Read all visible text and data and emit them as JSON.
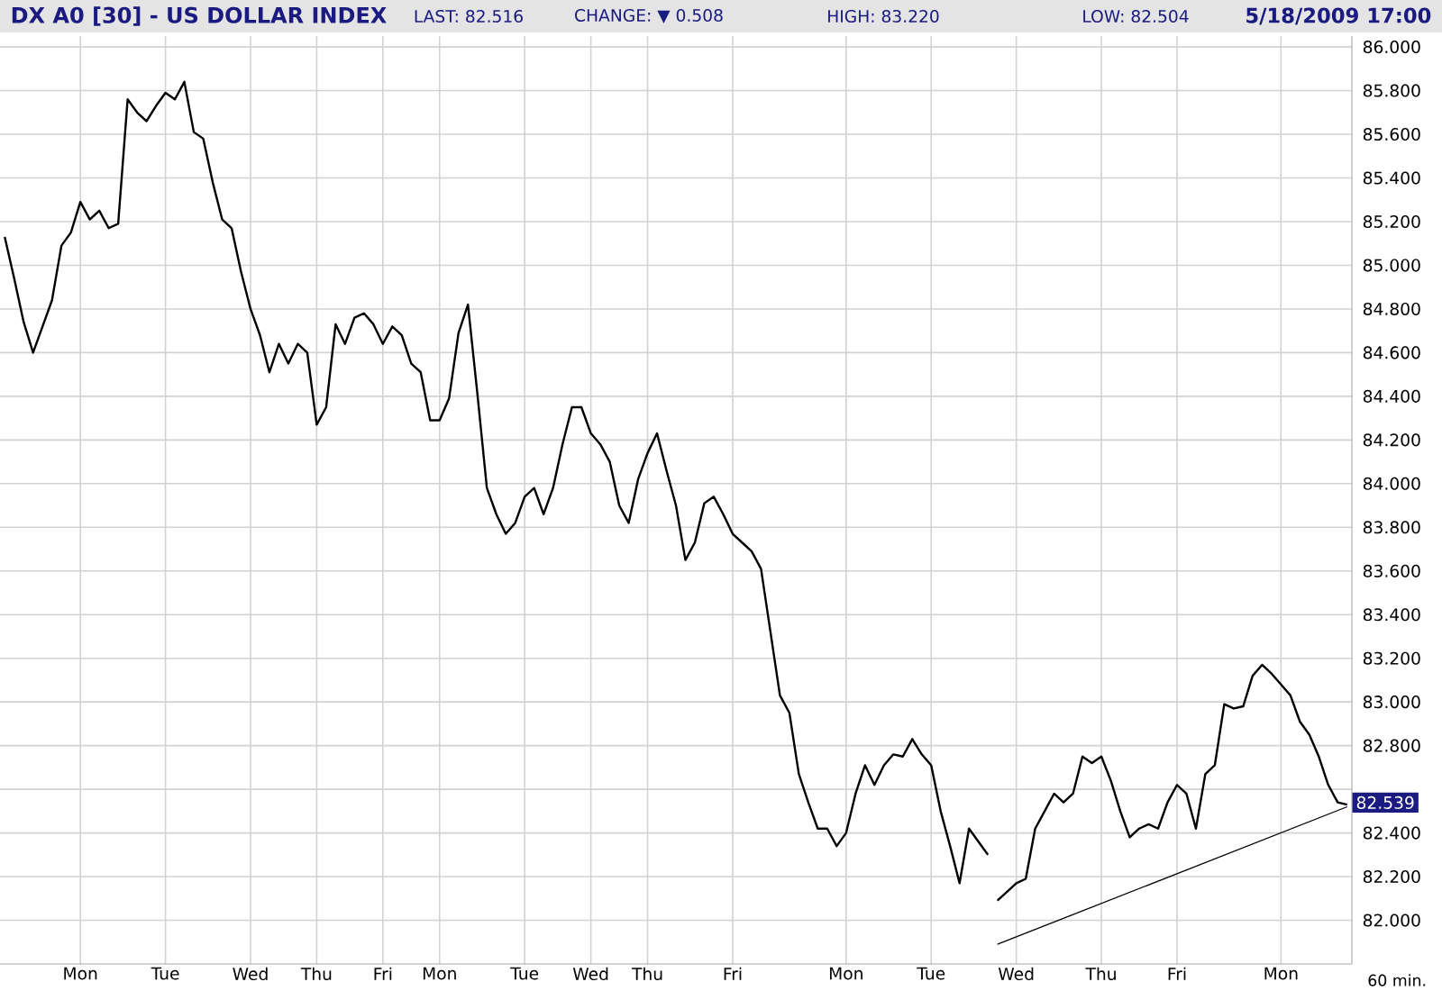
{
  "chart_data": {
    "type": "line",
    "title": "DX A0 [30] - US DOLLAR INDEX",
    "annotations": [
      "LAST: 82.516",
      "CHANGE: ▼ 0.508",
      "HIGH: 83.220",
      "LOW: 82.504",
      "5/18/2009 17:00",
      {
        "text": "82.539",
        "y": 82.539
      },
      "60 min."
    ],
    "categories": [
      null,
      null,
      null,
      null,
      null,
      null,
      null,
      null,
      "Mon",
      null,
      null,
      null,
      null,
      null,
      null,
      null,
      null,
      "Tue",
      null,
      null,
      null,
      null,
      null,
      null,
      null,
      null,
      "Wed",
      null,
      null,
      null,
      null,
      null,
      null,
      "Thu",
      null,
      null,
      null,
      null,
      null,
      null,
      "Fri",
      null,
      null,
      null,
      null,
      null,
      "Mon",
      null,
      null,
      null,
      null,
      null,
      null,
      null,
      null,
      "Tue",
      null,
      null,
      null,
      null,
      null,
      null,
      "Wed",
      null,
      null,
      null,
      null,
      null,
      "Thu",
      null,
      null,
      null,
      null,
      null,
      null,
      null,
      null,
      "Fri",
      null,
      null,
      null,
      null,
      null,
      null,
      null,
      null,
      null,
      null,
      null,
      "Mon",
      null,
      null,
      null,
      null,
      null,
      null,
      null,
      null,
      "Tue",
      null,
      null,
      null,
      null,
      null,
      null,
      null,
      null,
      "Wed",
      null,
      null,
      null,
      null,
      null,
      null,
      null,
      null,
      "Thu",
      null,
      null,
      null,
      null,
      null,
      null,
      null,
      "Fri",
      null,
      null,
      null,
      null,
      null,
      null,
      null,
      null,
      null,
      null,
      "Mon",
      null,
      null,
      null,
      null,
      null,
      null,
      null
    ],
    "ylim": [
      81.8,
      86.05
    ],
    "yticks": [
      {
        "value": 82.0,
        "label": "82.000"
      },
      {
        "value": 82.2,
        "label": "82.200"
      },
      {
        "value": 82.4,
        "label": "82.400"
      },
      {
        "value": 82.6,
        "label": null
      },
      {
        "value": 82.8,
        "label": "82.800"
      },
      {
        "value": 83.0,
        "label": "83.000"
      },
      {
        "value": 83.2,
        "label": "83.200"
      },
      {
        "value": 83.4,
        "label": "83.400"
      },
      {
        "value": 83.6,
        "label": "83.600"
      },
      {
        "value": 83.8,
        "label": "83.800"
      },
      {
        "value": 84.0,
        "label": "84.000"
      },
      {
        "value": 84.2,
        "label": "84.200"
      },
      {
        "value": 84.4,
        "label": "84.400"
      },
      {
        "value": 84.6,
        "label": "84.600"
      },
      {
        "value": 84.8,
        "label": "84.800"
      },
      {
        "value": 85.0,
        "label": "85.000"
      },
      {
        "value": 85.2,
        "label": "85.200"
      },
      {
        "value": 85.4,
        "label": "85.400"
      },
      {
        "value": 85.6,
        "label": "85.600"
      },
      {
        "value": 85.8,
        "label": "85.800"
      },
      {
        "value": 86.0,
        "label": "86.000"
      }
    ],
    "grid": true,
    "series": [
      {
        "color": "#000000",
        "values": [
          85.13,
          84.94,
          84.74,
          84.6,
          84.72,
          84.84,
          85.09,
          85.15,
          85.29,
          85.21,
          85.25,
          85.17,
          85.19,
          85.76,
          85.7,
          85.66,
          85.73,
          85.79,
          85.76,
          85.84,
          85.61,
          85.58,
          85.38,
          85.21,
          85.17,
          84.97,
          84.8,
          84.68,
          84.51,
          84.64,
          84.55,
          84.64,
          84.6,
          84.27,
          84.35,
          84.73,
          84.64,
          84.76,
          84.78,
          84.73,
          84.64,
          84.72,
          84.68,
          84.55,
          84.51,
          84.29,
          84.29,
          84.39,
          84.69,
          84.82,
          84.41,
          83.98,
          83.86,
          83.77,
          83.82,
          83.94,
          83.98,
          83.86,
          83.98,
          84.18,
          84.35,
          84.35,
          84.23,
          84.18,
          84.1,
          83.9,
          83.82,
          84.02,
          84.14,
          84.23,
          84.06,
          83.9,
          83.65,
          83.73,
          83.91,
          83.94,
          83.86,
          83.77,
          83.73,
          83.69,
          83.61,
          83.32,
          83.03,
          82.95,
          82.67,
          82.54,
          82.42,
          82.42,
          82.34,
          82.4,
          82.58,
          82.71,
          82.62,
          82.71,
          82.76,
          82.75,
          82.83,
          82.76,
          82.71,
          82.5,
          82.34,
          82.17,
          82.42,
          82.36,
          82.3,
          null,
          null,
          null,
          null,
          null,
          null,
          null,
          null,
          null,
          null,
          null,
          null,
          null,
          null,
          null,
          null,
          null,
          null,
          null,
          null,
          null,
          null,
          null,
          null,
          null,
          null,
          null,
          null,
          null,
          null,
          null,
          null,
          null,
          null,
          null,
          null,
          null,
          null
        ]
      },
      {
        "color": "#000000",
        "values": [
          null,
          null,
          null,
          null,
          null,
          null,
          null,
          null,
          null,
          null,
          null,
          null,
          null,
          null,
          null,
          null,
          null,
          null,
          null,
          null,
          null,
          null,
          null,
          null,
          null,
          null,
          null,
          null,
          null,
          null,
          null,
          null,
          null,
          null,
          null,
          null,
          null,
          null,
          null,
          null,
          null,
          null,
          null,
          null,
          null,
          null,
          null,
          null,
          null,
          null,
          null,
          null,
          null,
          null,
          null,
          null,
          null,
          null,
          null,
          null,
          null,
          null,
          null,
          null,
          null,
          null,
          null,
          null,
          null,
          null,
          null,
          null,
          null,
          null,
          null,
          null,
          null,
          null,
          null,
          null,
          null,
          null,
          null,
          null,
          null,
          null,
          null,
          null,
          null,
          null,
          null,
          null,
          null,
          null,
          null,
          null,
          null,
          null,
          null,
          null,
          null,
          null,
          null,
          null,
          null,
          82.09,
          82.13,
          82.17,
          82.19,
          82.42,
          82.5,
          82.58,
          82.54,
          82.58,
          82.75,
          82.72,
          82.75,
          82.64,
          82.5,
          82.38,
          82.42,
          82.44,
          82.42,
          82.54,
          82.62,
          82.58,
          82.42,
          82.67,
          82.71,
          82.99,
          82.97,
          82.98,
          83.12,
          83.17,
          83.13,
          83.08,
          83.03,
          82.91,
          82.85,
          82.75,
          82.62,
          82.54,
          82.53
        ]
      },
      {
        "type": "line",
        "color": "#000000",
        "values": [
          null,
          null,
          null,
          null,
          null,
          null,
          null,
          null,
          null,
          null,
          null,
          null,
          null,
          null,
          null,
          null,
          null,
          null,
          null,
          null,
          null,
          null,
          null,
          null,
          null,
          null,
          null,
          null,
          null,
          null,
          null,
          null,
          null,
          null,
          null,
          null,
          null,
          null,
          null,
          null,
          null,
          null,
          null,
          null,
          null,
          null,
          null,
          null,
          null,
          null,
          null,
          null,
          null,
          null,
          null,
          null,
          null,
          null,
          null,
          null,
          null,
          null,
          null,
          null,
          null,
          null,
          null,
          null,
          null,
          null,
          null,
          null,
          null,
          null,
          null,
          null,
          null,
          null,
          null,
          null,
          null,
          null,
          null,
          null,
          null,
          null,
          null,
          null,
          null,
          null,
          null,
          null,
          null,
          null,
          null,
          null,
          null,
          null,
          null,
          null,
          null,
          null,
          null,
          null,
          null,
          81.89,
          null,
          null,
          null,
          null,
          null,
          null,
          null,
          null,
          null,
          null,
          null,
          null,
          null,
          null,
          null,
          null,
          null,
          null,
          null,
          null,
          null,
          null,
          null,
          null,
          null,
          null,
          null,
          null,
          null,
          null,
          null,
          null,
          null,
          null,
          null,
          null,
          82.52
        ]
      }
    ]
  }
}
